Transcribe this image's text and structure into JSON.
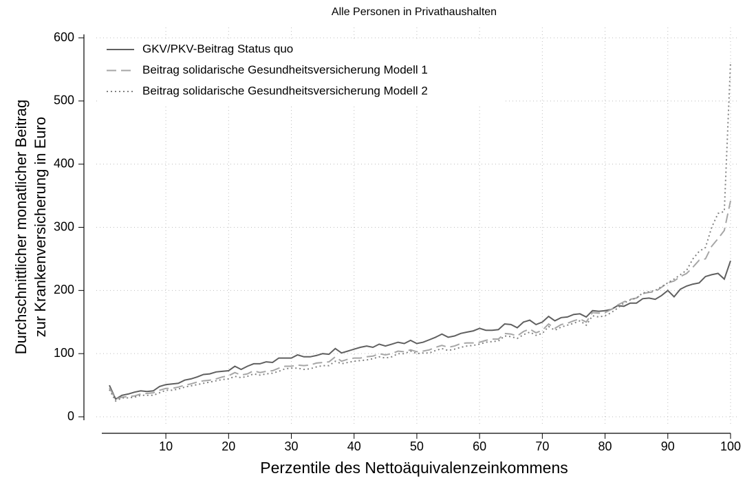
{
  "chart_data": {
    "type": "line",
    "title": "Alle Personen in Privathaushalten",
    "x_label": "Perzentile des Nettoäquivalenzeinkommens",
    "y_label": [
      "Durchschnittlicher monatlicher Beitrag",
      "zur Krankenversicherung in Euro"
    ],
    "x": [
      1,
      2,
      3,
      4,
      5,
      6,
      7,
      8,
      9,
      10,
      11,
      12,
      13,
      14,
      15,
      16,
      17,
      18,
      19,
      20,
      21,
      22,
      23,
      24,
      25,
      26,
      27,
      28,
      29,
      30,
      31,
      32,
      33,
      34,
      35,
      36,
      37,
      38,
      39,
      40,
      41,
      42,
      43,
      44,
      45,
      46,
      47,
      48,
      49,
      50,
      51,
      52,
      53,
      54,
      55,
      56,
      57,
      58,
      59,
      60,
      61,
      62,
      63,
      64,
      65,
      66,
      67,
      68,
      69,
      70,
      71,
      72,
      73,
      74,
      75,
      76,
      77,
      78,
      79,
      80,
      81,
      82,
      83,
      84,
      85,
      86,
      87,
      88,
      89,
      90,
      91,
      92,
      93,
      94,
      95,
      96,
      97,
      98,
      99,
      100
    ],
    "series": [
      {
        "name": "GKV/PKV-Beitrag Status quo",
        "color": "#5f5f5f",
        "dash": "solid",
        "values": [
          50,
          28,
          34,
          36,
          39,
          41,
          40,
          41,
          48,
          51,
          52,
          53,
          58,
          60,
          63,
          67,
          68,
          71,
          72,
          73,
          80,
          75,
          80,
          84,
          84,
          87,
          86,
          93,
          93,
          93,
          98,
          95,
          95,
          97,
          100,
          99,
          108,
          101,
          104,
          107,
          110,
          112,
          110,
          115,
          112,
          115,
          118,
          116,
          121,
          116,
          118,
          122,
          126,
          131,
          126,
          128,
          132,
          134,
          136,
          140,
          137,
          137,
          138,
          147,
          146,
          141,
          150,
          153,
          146,
          150,
          159,
          152,
          157,
          158,
          162,
          163,
          158,
          168,
          167,
          168,
          170,
          176,
          175,
          180,
          180,
          187,
          188,
          186,
          192,
          200,
          190,
          202,
          207,
          210,
          212,
          222,
          225,
          227,
          218,
          247
        ]
      },
      {
        "name": "Beitrag solidarische Gesundheitsversicherung Modell 1",
        "color": "#a6a6a6",
        "dash": "dashed",
        "values": [
          46,
          28,
          31,
          32,
          33,
          36,
          37,
          38,
          42,
          45,
          45,
          47,
          50,
          52,
          55,
          57,
          58,
          60,
          63,
          65,
          70,
          66,
          68,
          73,
          70,
          72,
          73,
          77,
          80,
          80,
          82,
          81,
          82,
          85,
          86,
          87,
          95,
          88,
          91,
          93,
          93,
          95,
          96,
          100,
          98,
          100,
          104,
          103,
          106,
          103,
          104,
          106,
          110,
          113,
          110,
          112,
          116,
          117,
          117,
          118,
          121,
          123,
          123,
          132,
          131,
          128,
          135,
          139,
          133,
          137,
          147,
          140,
          146,
          148,
          152,
          155,
          150,
          165,
          164,
          165,
          170,
          177,
          182,
          186,
          188,
          195,
          197,
          198,
          205,
          212,
          215,
          222,
          227,
          237,
          248,
          250,
          270,
          282,
          295,
          342
        ]
      },
      {
        "name": "Beitrag solidarische Gesundheitsversicherung Modell 2",
        "color": "#808080",
        "dash": "dotted",
        "values": [
          43,
          25,
          30,
          30,
          31,
          34,
          34,
          34,
          38,
          42,
          42,
          44,
          47,
          49,
          51,
          53,
          55,
          57,
          59,
          60,
          64,
          62,
          64,
          68,
          66,
          68,
          69,
          72,
          76,
          77,
          77,
          75,
          76,
          79,
          81,
          81,
          88,
          84,
          86,
          88,
          89,
          90,
          92,
          95,
          93,
          95,
          100,
          100,
          104,
          100,
          101,
          101,
          105,
          108,
          105,
          107,
          110,
          112,
          113,
          115,
          118,
          119,
          120,
          128,
          127,
          124,
          130,
          134,
          129,
          132,
          143,
          137,
          142,
          145,
          148,
          152,
          145,
          160,
          158,
          160,
          165,
          172,
          180,
          185,
          188,
          196,
          198,
          200,
          206,
          212,
          218,
          225,
          232,
          250,
          262,
          268,
          300,
          322,
          325,
          562
        ]
      }
    ],
    "xlim": [
      1,
      100
    ],
    "xticks": [
      10,
      20,
      30,
      40,
      50,
      60,
      70,
      80,
      90,
      100
    ],
    "ylim": [
      0,
      600
    ],
    "yticks": [
      0,
      100,
      200,
      300,
      400,
      500,
      600
    ],
    "grid": true,
    "legend": "top-left"
  }
}
